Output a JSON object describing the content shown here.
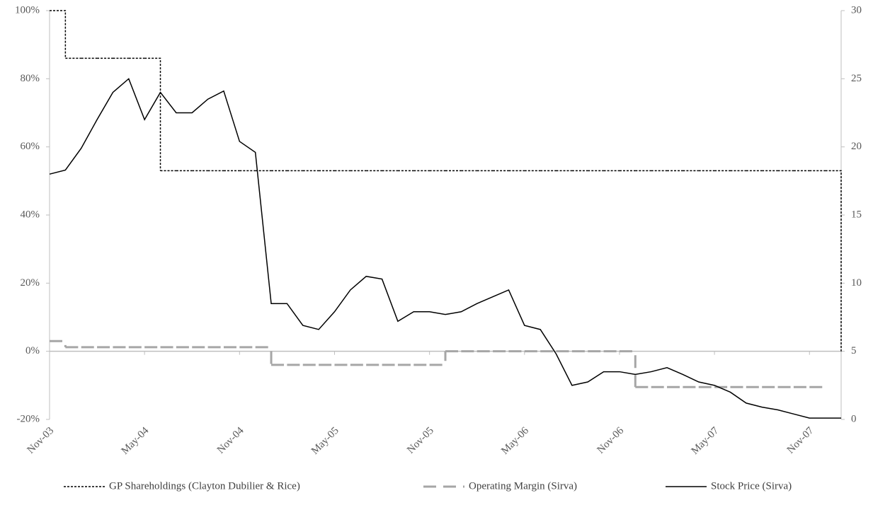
{
  "chart_data": {
    "type": "line",
    "x": [
      "2003-11",
      "2003-12",
      "2004-01",
      "2004-02",
      "2004-03",
      "2004-04",
      "2004-05",
      "2004-06",
      "2004-07",
      "2004-08",
      "2004-09",
      "2004-10",
      "2004-11",
      "2004-12",
      "2005-01",
      "2005-02",
      "2005-03",
      "2005-04",
      "2005-05",
      "2005-06",
      "2005-07",
      "2005-08",
      "2005-09",
      "2005-10",
      "2005-11",
      "2005-12",
      "2006-01",
      "2006-02",
      "2006-03",
      "2006-04",
      "2006-05",
      "2006-06",
      "2006-07",
      "2006-08",
      "2006-09",
      "2006-10",
      "2006-11",
      "2006-12",
      "2007-01",
      "2007-02",
      "2007-03",
      "2007-04",
      "2007-05",
      "2007-06",
      "2007-07",
      "2007-08",
      "2007-09",
      "2007-10",
      "2007-11",
      "2007-12",
      "2008-01"
    ],
    "xlim": [
      "2003-11",
      "2008-01"
    ],
    "xticks": [
      {
        "value": "2003-11",
        "label": "Nov-03"
      },
      {
        "value": "2004-05",
        "label": "May-04"
      },
      {
        "value": "2004-11",
        "label": "Nov-04"
      },
      {
        "value": "2005-05",
        "label": "May-05"
      },
      {
        "value": "2005-11",
        "label": "Nov-05"
      },
      {
        "value": "2006-05",
        "label": "May-06"
      },
      {
        "value": "2006-11",
        "label": "Nov-06"
      },
      {
        "value": "2007-05",
        "label": "May-07"
      },
      {
        "value": "2007-11",
        "label": "Nov-07"
      }
    ],
    "ylim": [
      -20,
      100
    ],
    "yticks": [
      {
        "value": -20,
        "label": "-20%"
      },
      {
        "value": 0,
        "label": "0%"
      },
      {
        "value": 20,
        "label": "20%"
      },
      {
        "value": 40,
        "label": "40%"
      },
      {
        "value": 60,
        "label": "60%"
      },
      {
        "value": 80,
        "label": "80%"
      },
      {
        "value": 100,
        "label": "100%"
      }
    ],
    "y2lim": [
      0,
      30
    ],
    "y2ticks": [
      0,
      5,
      10,
      15,
      20,
      25,
      30
    ],
    "zero_line": true,
    "legend": "bottom",
    "series": [
      {
        "name": "GP Shareholdings (Clayton Dubilier & Rice)",
        "color": "#000000",
        "dash": "dotted",
        "step": true,
        "values": [
          100,
          86,
          86,
          86,
          86,
          86,
          86,
          53,
          53,
          53,
          53,
          53,
          53,
          53,
          53,
          53,
          53,
          53,
          53,
          53,
          53,
          53,
          53,
          53,
          53,
          53,
          53,
          53,
          53,
          53,
          53,
          53,
          53,
          53,
          53,
          53,
          53,
          53,
          53,
          53,
          53,
          53,
          53,
          53,
          53,
          53,
          53,
          53,
          53,
          53,
          0
        ]
      },
      {
        "name": "Operating Margin (Sirva)",
        "color": "#a6a6a6",
        "dash": "dashed",
        "step": true,
        "values": [
          3,
          1.2,
          1.2,
          1.2,
          1.2,
          1.2,
          1.2,
          1.2,
          1.2,
          1.2,
          1.2,
          1.2,
          1.2,
          1.2,
          -4,
          -4,
          -4,
          -4,
          -4,
          -4,
          -4,
          -4,
          -4,
          -4,
          -4,
          0,
          0,
          0,
          0,
          0,
          0,
          0,
          0,
          0,
          0,
          0,
          0,
          -10.5,
          -10.5,
          -10.5,
          -10.5,
          -10.5,
          -10.5,
          -10.5,
          -10.5,
          -10.5,
          -10.5,
          -10.5,
          -10.5,
          null,
          null
        ]
      },
      {
        "name": "Stock Price (Sirva)",
        "color": "#000000",
        "dash": "solid",
        "axis": "y2",
        "values": [
          18.0,
          18.3,
          19.9,
          22.0,
          24.0,
          25.0,
          22.0,
          24.0,
          22.5,
          22.5,
          23.5,
          24.1,
          20.4,
          19.6,
          8.5,
          8.5,
          6.9,
          6.6,
          7.9,
          9.5,
          10.5,
          10.3,
          7.2,
          7.9,
          7.9,
          7.7,
          7.9,
          8.5,
          9.0,
          9.5,
          6.9,
          6.6,
          4.8,
          2.5,
          2.75,
          3.5,
          3.5,
          3.3,
          3.5,
          3.8,
          3.3,
          2.75,
          2.5,
          2.0,
          1.2,
          0.9,
          0.7,
          0.4,
          0.1,
          0.1,
          0.1
        ]
      }
    ]
  }
}
